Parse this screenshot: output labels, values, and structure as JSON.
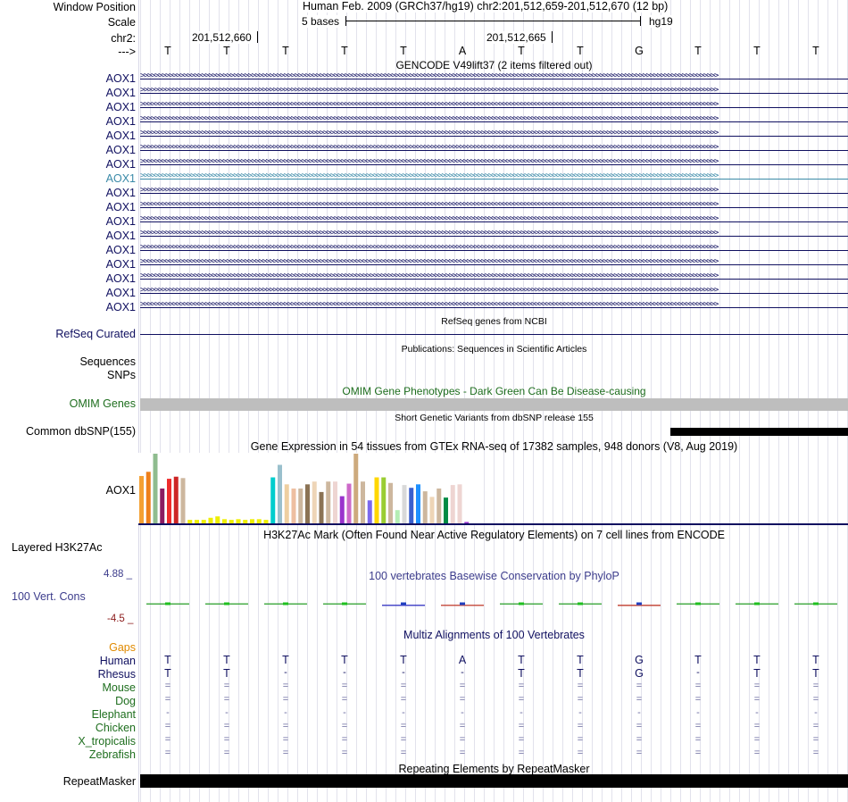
{
  "header": {
    "window_position_label": "Window Position",
    "window_position_value": "Human Feb. 2009 (GRCh37/hg19)   chr2:201,512,659-201,512,670 (12 bp)",
    "scale_label": "Scale",
    "scale_value": "5 bases",
    "scale_assembly": "hg19",
    "chrom_label": "chr2:",
    "pos1": "201,512,660",
    "pos2": "201,512,665",
    "strand_label": "--->"
  },
  "bases": [
    "T",
    "T",
    "T",
    "T",
    "T",
    "A",
    "T",
    "T",
    "G",
    "T",
    "T",
    "T"
  ],
  "gencode": {
    "title": "GENCODE V49lift37 (2 items filtered out)",
    "genes": [
      "AOX1",
      "AOX1",
      "AOX1",
      "AOX1",
      "AOX1",
      "AOX1",
      "AOX1",
      "AOX1",
      "AOX1",
      "AOX1",
      "AOX1",
      "AOX1",
      "AOX1",
      "AOX1",
      "AOX1",
      "AOX1",
      "AOX1"
    ],
    "selected_index": 7,
    "arrows": ">>>>>>>>>>>>>>>>>>>>>>>>>>>>>>>>>>>>>>>>>>>>>>>>>>>>>>>>>>>>>>>>>>>>>>>>>>>>>>>>>>>>>>>>>>>>>>>>>>>>>>>>>>>>>>>>>>>>>>>>>>>>>>>>>>>>>>>>>>>>>>>>>>>>>>>>>>>>>>>>>"
  },
  "refseq": {
    "title": "RefSeq genes from NCBI",
    "label": "RefSeq Curated"
  },
  "publications": {
    "title": "Publications: Sequences in Scientific Articles",
    "label1": "Sequences",
    "label2": "SNPs"
  },
  "omim": {
    "title": "OMIM Gene Phenotypes - Dark Green Can Be Disease-causing",
    "label": "OMIM Genes",
    "color": "#bebebe",
    "title_color": "#1e6e1e"
  },
  "dbsnp": {
    "title": "Short Genetic Variants from dbSNP release 155",
    "label": "Common dbSNP(155)"
  },
  "gtex": {
    "title": "Gene Expression in 54 tissues from GTEx RNA-seq of 17382 samples, 948 donors (V8, Aug 2019)",
    "label": "AOX1",
    "values": [
      0.68,
      0.74,
      1.0,
      0.5,
      0.64,
      0.67,
      0.65,
      0.05,
      0.05,
      0.05,
      0.08,
      0.1,
      0.06,
      0.05,
      0.06,
      0.05,
      0.06,
      0.06,
      0.05,
      0.66,
      0.84,
      0.56,
      0.5,
      0.5,
      0.56,
      0.6,
      0.45,
      0.6,
      0.6,
      0.39,
      0.57,
      1.0,
      0.6,
      0.33,
      0.66,
      0.66,
      0.58,
      0.19,
      0.55,
      0.51,
      0.56,
      0.46,
      0.38,
      0.5,
      0.37,
      0.55,
      0.56,
      0.02
    ],
    "colors": [
      "#f4a033",
      "#ee7f1a",
      "#8fbc8f",
      "#8b1c62",
      "#ee2c2c",
      "#cd2626",
      "#cdb79e",
      "#eeee00",
      "#eeee00",
      "#eeee00",
      "#eeee00",
      "#eeee00",
      "#eeee00",
      "#eeee00",
      "#eeee00",
      "#eeee00",
      "#eeee00",
      "#eeee00",
      "#eeee00",
      "#00cdcd",
      "#9ac0cd",
      "#eecfa1",
      "#eebfa1",
      "#cdb79e",
      "#8b7355",
      "#eed5b7",
      "#8b7355",
      "#cdb79e",
      "#eed5d2",
      "#9a32cd",
      "#cd69c9",
      "#cdaa7d",
      "#cdb79e",
      "#7b68ee",
      "#ffd700",
      "#9acd32",
      "#cdb79e",
      "#b4eeb4",
      "#d9d9d9",
      "#3a5fcd",
      "#1e90ff",
      "#cdb79e",
      "#eed5b7",
      "#cdb79e",
      "#008b45",
      "#eed5d2",
      "#eed5d2",
      "#9a32cd"
    ]
  },
  "h3k27ac": {
    "title": "H3K27Ac Mark (Often Found Near Active Regulatory Elements) on 7 cell lines from ENCODE",
    "label": "Layered H3K27Ac"
  },
  "cons": {
    "title": "100 vertebrates Basewise Conservation by PhyloP",
    "label": "100 Vert. Cons",
    "max_label": "4.88 _",
    "min_label": "-4.5 _",
    "values": [
      0.2,
      0.3,
      0.3,
      0.3,
      -0.1,
      -0.3,
      0.3,
      0.2,
      -0.4,
      0.0,
      0.2,
      0.2
    ],
    "title_color": "#3c3c8c"
  },
  "multiz": {
    "title": "Multiz Alignments of 100 Vertebrates",
    "gaps_label": "Gaps",
    "species": [
      {
        "name": "Human",
        "bases": [
          "T",
          "T",
          "T",
          "T",
          "T",
          "A",
          "T",
          "T",
          "G",
          "T",
          "T",
          "T"
        ]
      },
      {
        "name": "Rhesus",
        "bases": [
          "T",
          "T",
          "-",
          "-",
          "-",
          "-",
          "T",
          "T",
          "G",
          "-",
          "T",
          "T"
        ]
      },
      {
        "name": "Mouse",
        "bases": [
          "=",
          "=",
          "=",
          "=",
          "=",
          "=",
          "=",
          "=",
          "=",
          "=",
          "=",
          "="
        ]
      },
      {
        "name": "Dog",
        "bases": [
          "=",
          "=",
          "=",
          "=",
          "=",
          "=",
          "=",
          "=",
          "=",
          "=",
          "=",
          "="
        ]
      },
      {
        "name": "Elephant",
        "bases": [
          "-",
          "-",
          "-",
          "-",
          "-",
          "-",
          "-",
          "-",
          "-",
          "-",
          "-",
          "-"
        ]
      },
      {
        "name": "Chicken",
        "bases": [
          "=",
          "=",
          "=",
          "=",
          "=",
          "=",
          "=",
          "=",
          "=",
          "=",
          "=",
          "="
        ]
      },
      {
        "name": "X_tropicalis",
        "bases": [
          "=",
          "=",
          "=",
          "=",
          "=",
          "=",
          "=",
          "=",
          "=",
          "=",
          "=",
          "="
        ]
      },
      {
        "name": "Zebrafish",
        "bases": [
          "=",
          "=",
          "=",
          "=",
          "=",
          "=",
          "=",
          "=",
          "=",
          "=",
          "=",
          "="
        ]
      }
    ]
  },
  "repeatmasker": {
    "title": "Repeating Elements by RepeatMasker",
    "label": "RepeatMasker"
  }
}
